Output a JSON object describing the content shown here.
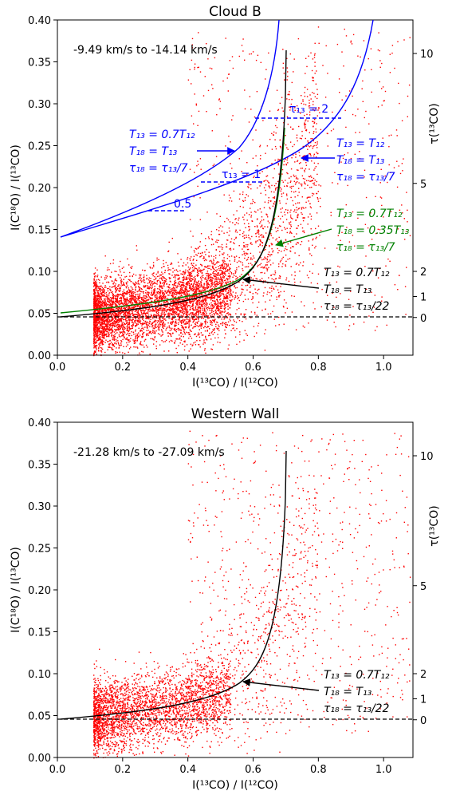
{
  "chart_data": [
    {
      "type": "scatter",
      "title": "Cloud B",
      "velocity_label": "-9.49 km/s to -14.14 km/s",
      "xlabel": "I(¹³CO) / I(¹²CO)",
      "ylabel": "I(C¹⁸O) / I(¹³CO)",
      "y2label": "τ(¹³CO)",
      "xlim": [
        0.0,
        1.09
      ],
      "ylim": [
        0.0,
        0.4
      ],
      "xticks": [
        "0.0",
        "0.2",
        "0.4",
        "0.6",
        "0.8",
        "1.0"
      ],
      "yticks": [
        "0.00",
        "0.05",
        "0.10",
        "0.15",
        "0.20",
        "0.25",
        "0.30",
        "0.35",
        "0.40"
      ],
      "tau_ticks": [
        {
          "label": "10",
          "y": 0.36
        },
        {
          "label": "5",
          "y": 0.205
        },
        {
          "label": "2",
          "y": 0.1
        },
        {
          "label": "1",
          "y": 0.07
        },
        {
          "label": "0",
          "y": 0.045
        }
      ],
      "grid": false,
      "scatter": {
        "n": 6500,
        "color": "#ff0000",
        "seed": 7,
        "density": 1.0,
        "tail": 1.0
      },
      "curves": [
        {
          "name": "blue",
          "color": "#0000ff",
          "labels": [
            "T₁₃ = 0.7T₁₂",
            "T₁₈ = T₁₃",
            "τ₁₈ = τ₁₃/7"
          ]
        },
        {
          "name": "blue-upper",
          "color": "#0000ff",
          "labels": [
            "T₁₃ = T₁₂",
            "T₁₈ = T₁₃",
            "τ₁₈ = τ₁₃/7"
          ]
        },
        {
          "name": "green",
          "color": "#008000",
          "labels": [
            "T₁₃ = 0.7T₁₂",
            "T₁₈ = 0.35T₁₃",
            "τ₁₈ = τ₁₃/7"
          ]
        },
        {
          "name": "black",
          "color": "#000000",
          "labels": [
            "T₁₃ = 0.7T₁₂",
            "T₁₈ = T₁₃",
            "τ₁₈ = τ₁₃/22"
          ]
        }
      ],
      "tau_markers": [
        {
          "label": "0.5",
          "y": 0.172,
          "x": [
            0.28,
            0.39
          ]
        },
        {
          "label": "τ₁₃ = 1",
          "y": 0.205,
          "x": [
            0.44,
            0.63
          ]
        },
        {
          "label": "τ₁₃ = 2",
          "y": 0.282,
          "x": [
            0.6,
            0.87
          ]
        }
      ],
      "hline_y": 0.045
    },
    {
      "type": "scatter",
      "title": "Western Wall",
      "velocity_label": "-21.28 km/s to -27.09 km/s",
      "xlabel": "I(¹³CO) / I(¹²CO)",
      "ylabel": "I(C¹⁸O) / I(¹³CO)",
      "y2label": "τ(¹³CO)",
      "xlim": [
        0.0,
        1.09
      ],
      "ylim": [
        0.0,
        0.4
      ],
      "xticks": [
        "0.0",
        "0.2",
        "0.4",
        "0.6",
        "0.8",
        "1.0"
      ],
      "yticks": [
        "0.00",
        "0.05",
        "0.10",
        "0.15",
        "0.20",
        "0.25",
        "0.30",
        "0.35",
        "0.40"
      ],
      "tau_ticks": [
        {
          "label": "10",
          "y": 0.36
        },
        {
          "label": "5",
          "y": 0.205
        },
        {
          "label": "2",
          "y": 0.1
        },
        {
          "label": "1",
          "y": 0.07
        },
        {
          "label": "0",
          "y": 0.045
        }
      ],
      "grid": false,
      "scatter": {
        "n": 4200,
        "color": "#ff0000",
        "seed": 19,
        "density": 0.8,
        "tail": 0.7
      },
      "curves": [
        {
          "name": "black",
          "color": "#000000",
          "labels": [
            "T₁₃ = 0.7T₁₂",
            "T₁₈ = T₁₃",
            "τ₁₈ = τ₁₃/22"
          ]
        }
      ],
      "tau_markers": [],
      "hline_y": 0.045
    }
  ]
}
